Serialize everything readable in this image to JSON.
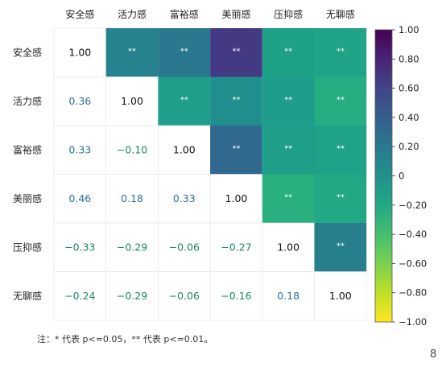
{
  "chart_data": {
    "type": "heatmap",
    "variables": [
      "安全感",
      "活力感",
      "富裕感",
      "美丽感",
      "压抑感",
      "无聊感"
    ],
    "matrix": [
      [
        1.0,
        0.36,
        0.33,
        0.46,
        -0.33,
        -0.24
      ],
      [
        0.36,
        1.0,
        -0.1,
        0.18,
        -0.29,
        -0.29
      ],
      [
        0.33,
        -0.1,
        1.0,
        0.33,
        -0.06,
        -0.06
      ],
      [
        0.46,
        0.18,
        0.33,
        1.0,
        -0.27,
        -0.16
      ],
      [
        -0.33,
        -0.29,
        -0.06,
        -0.27,
        1.0,
        0.18
      ],
      [
        -0.24,
        -0.29,
        -0.06,
        -0.16,
        0.18,
        1.0
      ]
    ],
    "upper_labels": [
      [
        null,
        "**",
        "**",
        "**",
        "**",
        "**"
      ],
      [
        null,
        null,
        "**",
        "**",
        "**",
        "**"
      ],
      [
        null,
        null,
        null,
        "**",
        "**",
        "**"
      ],
      [
        null,
        null,
        null,
        null,
        "**",
        "**"
      ],
      [
        null,
        null,
        null,
        null,
        null,
        "**"
      ],
      [
        null,
        null,
        null,
        null,
        null,
        null
      ]
    ],
    "lower_display": [
      [
        "1.00",
        "",
        "",
        "",
        "",
        ""
      ],
      [
        "0.36",
        "1.00",
        "",
        "",
        "",
        ""
      ],
      [
        "0.33",
        "−0.10",
        "1.00",
        "",
        "",
        ""
      ],
      [
        "0.46",
        "0.18",
        "0.33",
        "1.00",
        "",
        ""
      ],
      [
        "−0.33",
        "−0.29",
        "−0.06",
        "−0.27",
        "1.00",
        ""
      ],
      [
        "−0.24",
        "−0.29",
        "−0.06",
        "−0.16",
        "0.18",
        "1.00"
      ]
    ],
    "colorbar": {
      "range": [
        -1.0,
        1.0
      ],
      "ticks": [
        "1.00",
        "0.80",
        "0.60",
        "0.40",
        "0.20",
        "0",
        "−0.20",
        "−0.40",
        "−0.60",
        "−0.80",
        "−1.00"
      ],
      "tick_values": [
        1.0,
        0.8,
        0.6,
        0.4,
        0.2,
        0,
        -0.2,
        -0.4,
        -0.6,
        -0.8,
        -1.0
      ],
      "colormap": "viridis"
    },
    "colors": {
      "ss_1": "#26828e",
      "ss_2": "#2a788e",
      "ss_3": "#443983",
      "ss_4": "#1fa187",
      "ss_5": "#20a386",
      "hl_1": "#1f9e89",
      "hl_2": "#218f8d",
      "hl_3": "#1f9d8a",
      "hl_4": "#26ad81",
      "fy_1": "#31688e",
      "fy_2": "#1f9e89",
      "fy_3": "#1fa287",
      "ml_1": "#2ab07f",
      "ml_2": "#22a884",
      "yy_1": "#277f8e",
      "lower_positive_text": "#2a6f97",
      "lower_negative_text": "#1a8a5c",
      "diag_text": "#111111"
    }
  },
  "footnote": "注：* 代表 p<=0.05，** 代表 p<=0.01。",
  "page_number": "8"
}
